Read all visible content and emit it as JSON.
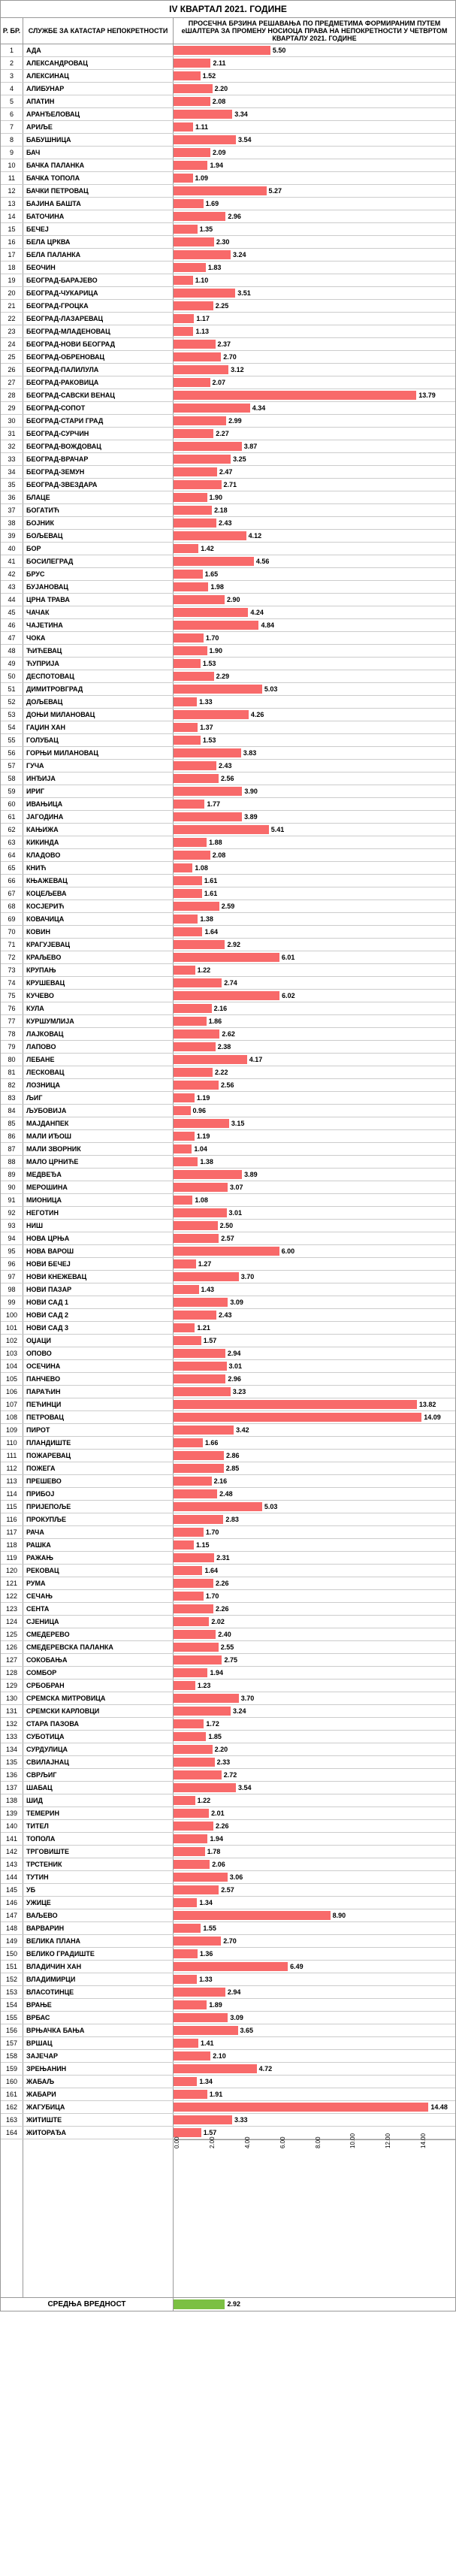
{
  "title": "IV КВАРТАЛ 2021. ГОДИНЕ",
  "header_num": "Р. БР.",
  "header_name": "СЛУЖБЕ ЗА КАТАСТАР НЕПОКРЕТНОСТИ",
  "header_chart": "ПРОСЕЧНА БРЗИНА РЕШАВАЊА ПО ПРЕДМЕТИМА ФОРМИРАНИМ ПУТЕМ еШАЛТЕРА ЗА ПРОМЕНУ НОСИОЦА ПРАВА НА НЕПОКРЕТНОСТИ У ЧЕТВРТОМ КВАРТАЛУ 2021. ГОДИНЕ",
  "chart": {
    "max": 16,
    "bar_color": "#f86a6a",
    "avg_color": "#7bc043",
    "ticks": [
      0,
      2,
      4,
      6,
      8,
      10,
      12,
      14,
      16
    ]
  },
  "avg_label": "СРЕДЊА ВРЕДНОСТ",
  "avg_value": 2.92,
  "rows": [
    {
      "n": 1,
      "name": "АДА",
      "v": 5.5
    },
    {
      "n": 2,
      "name": "АЛЕКСАНДРОВАЦ",
      "v": 2.11
    },
    {
      "n": 3,
      "name": "АЛЕКСИНАЦ",
      "v": 1.52
    },
    {
      "n": 4,
      "name": "АЛИБУНАР",
      "v": 2.2
    },
    {
      "n": 5,
      "name": "АПАТИН",
      "v": 2.08
    },
    {
      "n": 6,
      "name": "АРАНЂЕЛОВАЦ",
      "v": 3.34
    },
    {
      "n": 7,
      "name": "АРИЉЕ",
      "v": 1.11
    },
    {
      "n": 8,
      "name": "БАБУШНИЦА",
      "v": 3.54
    },
    {
      "n": 9,
      "name": "БАЧ",
      "v": 2.09
    },
    {
      "n": 10,
      "name": "БАЧКА ПАЛАНКА",
      "v": 1.94
    },
    {
      "n": 11,
      "name": "БАЧКА ТОПОЛА",
      "v": 1.09
    },
    {
      "n": 12,
      "name": "БАЧКИ ПЕТРОВАЦ",
      "v": 5.27
    },
    {
      "n": 13,
      "name": "БАЈИНА БАШТА",
      "v": 1.69
    },
    {
      "n": 14,
      "name": "БАТОЧИНА",
      "v": 2.96
    },
    {
      "n": 15,
      "name": "БЕЧЕЈ",
      "v": 1.35
    },
    {
      "n": 16,
      "name": "БЕЛА ЦРКВА",
      "v": 2.3
    },
    {
      "n": 17,
      "name": "БЕЛА ПАЛАНКА",
      "v": 3.24
    },
    {
      "n": 18,
      "name": "БЕОЧИН",
      "v": 1.83
    },
    {
      "n": 19,
      "name": "БЕОГРАД-БАРАЈЕВО",
      "v": 1.1
    },
    {
      "n": 20,
      "name": "БЕОГРАД-ЧУКАРИЦА",
      "v": 3.51
    },
    {
      "n": 21,
      "name": "БЕОГРАД-ГРОЦКА",
      "v": 2.25
    },
    {
      "n": 22,
      "name": "БЕОГРАД-ЛАЗАРЕВАЦ",
      "v": 1.17
    },
    {
      "n": 23,
      "name": "БЕОГРАД-МЛАДЕНОВАЦ",
      "v": 1.13
    },
    {
      "n": 24,
      "name": "БЕОГРАД-НОВИ БЕОГРАД",
      "v": 2.37
    },
    {
      "n": 25,
      "name": "БЕОГРАД-ОБРЕНОВАЦ",
      "v": 2.7
    },
    {
      "n": 26,
      "name": "БЕОГРАД-ПАЛИЛУЛА",
      "v": 3.12
    },
    {
      "n": 27,
      "name": "БЕОГРАД-РАКОВИЦА",
      "v": 2.07
    },
    {
      "n": 28,
      "name": "БЕОГРАД-САВСКИ ВЕНАЦ",
      "v": 13.79
    },
    {
      "n": 29,
      "name": "БЕОГРАД-СОПОТ",
      "v": 4.34
    },
    {
      "n": 30,
      "name": "БЕОГРАД-СТАРИ ГРАД",
      "v": 2.99
    },
    {
      "n": 31,
      "name": "БЕОГРАД-СУРЧИН",
      "v": 2.27
    },
    {
      "n": 32,
      "name": "БЕОГРАД-ВОЖДОВАЦ",
      "v": 3.87
    },
    {
      "n": 33,
      "name": "БЕОГРАД-ВРАЧАР",
      "v": 3.25
    },
    {
      "n": 34,
      "name": "БЕОГРАД-ЗЕМУН",
      "v": 2.47
    },
    {
      "n": 35,
      "name": "БЕОГРАД-ЗВЕЗДАРА",
      "v": 2.71
    },
    {
      "n": 36,
      "name": "БЛАЦЕ",
      "v": 1.9
    },
    {
      "n": 37,
      "name": "БОГАТИЋ",
      "v": 2.18
    },
    {
      "n": 38,
      "name": "БОЈНИК",
      "v": 2.43
    },
    {
      "n": 39,
      "name": "БОЉЕВАЦ",
      "v": 4.12
    },
    {
      "n": 40,
      "name": "БОР",
      "v": 1.42
    },
    {
      "n": 41,
      "name": "БОСИЛЕГРАД",
      "v": 4.56
    },
    {
      "n": 42,
      "name": "БРУС",
      "v": 1.65
    },
    {
      "n": 43,
      "name": "БУЈАНОВАЦ",
      "v": 1.98
    },
    {
      "n": 44,
      "name": "ЦРНА ТРАВА",
      "v": 2.9
    },
    {
      "n": 45,
      "name": "ЧАЧАК",
      "v": 4.24
    },
    {
      "n": 46,
      "name": "ЧАЈЕТИНА",
      "v": 4.84
    },
    {
      "n": 47,
      "name": "ЧОКА",
      "v": 1.7
    },
    {
      "n": 48,
      "name": "ЋИЋЕВАЦ",
      "v": 1.9
    },
    {
      "n": 49,
      "name": "ЋУПРИЈА",
      "v": 1.53
    },
    {
      "n": 50,
      "name": "ДЕСПОТОВАЦ",
      "v": 2.29
    },
    {
      "n": 51,
      "name": "ДИМИТРОВГРАД",
      "v": 5.03
    },
    {
      "n": 52,
      "name": "ДОЉЕВАЦ",
      "v": 1.33
    },
    {
      "n": 53,
      "name": "ДОЊИ МИЛАНОВАЦ",
      "v": 4.26
    },
    {
      "n": 54,
      "name": "ГАЏИН ХАН",
      "v": 1.37
    },
    {
      "n": 55,
      "name": "ГОЛУБАЦ",
      "v": 1.53
    },
    {
      "n": 56,
      "name": "ГОРЊИ МИЛАНОВАЦ",
      "v": 3.83
    },
    {
      "n": 57,
      "name": "ГУЧА",
      "v": 2.43
    },
    {
      "n": 58,
      "name": "ИНЂИЈА",
      "v": 2.56
    },
    {
      "n": 59,
      "name": "ИРИГ",
      "v": 3.9
    },
    {
      "n": 60,
      "name": "ИВАЊИЦА",
      "v": 1.77
    },
    {
      "n": 61,
      "name": "ЈАГОДИНА",
      "v": 3.89
    },
    {
      "n": 62,
      "name": "КАЊИЖА",
      "v": 5.41
    },
    {
      "n": 63,
      "name": "КИКИНДА",
      "v": 1.88
    },
    {
      "n": 64,
      "name": "КЛАДОВО",
      "v": 2.08
    },
    {
      "n": 65,
      "name": "КНИЋ",
      "v": 1.08
    },
    {
      "n": 66,
      "name": "КЊАЖЕВАЦ",
      "v": 1.61
    },
    {
      "n": 67,
      "name": "КОЦЕЉЕВА",
      "v": 1.61
    },
    {
      "n": 68,
      "name": "КОСЈЕРИЋ",
      "v": 2.59
    },
    {
      "n": 69,
      "name": "КОВАЧИЦА",
      "v": 1.38
    },
    {
      "n": 70,
      "name": "КОВИН",
      "v": 1.64
    },
    {
      "n": 71,
      "name": "КРАГУЈЕВАЦ",
      "v": 2.92
    },
    {
      "n": 72,
      "name": "КРАЉЕВО",
      "v": 6.01
    },
    {
      "n": 73,
      "name": "КРУПАЊ",
      "v": 1.22
    },
    {
      "n": 74,
      "name": "КРУШЕВАЦ",
      "v": 2.74
    },
    {
      "n": 75,
      "name": "КУЧЕВО",
      "v": 6.02
    },
    {
      "n": 76,
      "name": "КУЛА",
      "v": 2.16
    },
    {
      "n": 77,
      "name": "КУРШУМЛИЈА",
      "v": 1.86
    },
    {
      "n": 78,
      "name": "ЛАЈКОВАЦ",
      "v": 2.62
    },
    {
      "n": 79,
      "name": "ЛАПОВО",
      "v": 2.38
    },
    {
      "n": 80,
      "name": "ЛЕБАНЕ",
      "v": 4.17
    },
    {
      "n": 81,
      "name": "ЛЕСКОВАЦ",
      "v": 2.22
    },
    {
      "n": 82,
      "name": "ЛОЗНИЦА",
      "v": 2.56
    },
    {
      "n": 83,
      "name": "ЉИГ",
      "v": 1.19
    },
    {
      "n": 84,
      "name": "ЉУБОВИЈА",
      "v": 0.96
    },
    {
      "n": 85,
      "name": "МАЈДАНПЕК",
      "v": 3.15
    },
    {
      "n": 86,
      "name": "МАЛИ ИЂОШ",
      "v": 1.19
    },
    {
      "n": 87,
      "name": "МАЛИ ЗВОРНИК",
      "v": 1.04
    },
    {
      "n": 88,
      "name": "МАЛО ЦРНИЋЕ",
      "v": 1.38
    },
    {
      "n": 89,
      "name": "МЕДВЕЂА",
      "v": 3.89
    },
    {
      "n": 90,
      "name": "МЕРОШИНА",
      "v": 3.07
    },
    {
      "n": 91,
      "name": "МИОНИЦА",
      "v": 1.08
    },
    {
      "n": 92,
      "name": "НЕГОТИН",
      "v": 3.01
    },
    {
      "n": 93,
      "name": "НИШ",
      "v": 2.5
    },
    {
      "n": 94,
      "name": "НОВА ЦРЊА",
      "v": 2.57
    },
    {
      "n": 95,
      "name": "НОВА ВАРОШ",
      "v": 6.0
    },
    {
      "n": 96,
      "name": "НОВИ БЕЧЕЈ",
      "v": 1.27
    },
    {
      "n": 97,
      "name": "НОВИ КНЕЖЕВАЦ",
      "v": 3.7
    },
    {
      "n": 98,
      "name": "НОВИ ПАЗАР",
      "v": 1.43
    },
    {
      "n": 99,
      "name": "НОВИ САД 1",
      "v": 3.09
    },
    {
      "n": 100,
      "name": "НОВИ САД 2",
      "v": 2.43
    },
    {
      "n": 101,
      "name": "НОВИ САД 3",
      "v": 1.21
    },
    {
      "n": 102,
      "name": "ОЏАЦИ",
      "v": 1.57
    },
    {
      "n": 103,
      "name": "ОПОВО",
      "v": 2.94
    },
    {
      "n": 104,
      "name": "ОСЕЧИНА",
      "v": 3.01
    },
    {
      "n": 105,
      "name": "ПАНЧЕВО",
      "v": 2.96
    },
    {
      "n": 106,
      "name": "ПАРАЋИН",
      "v": 3.23
    },
    {
      "n": 107,
      "name": "ПЕЋИНЦИ",
      "v": 13.82
    },
    {
      "n": 108,
      "name": "ПЕТРОВАЦ",
      "v": 14.09
    },
    {
      "n": 109,
      "name": "ПИРОТ",
      "v": 3.42
    },
    {
      "n": 110,
      "name": "ПЛАНДИШТЕ",
      "v": 1.66
    },
    {
      "n": 111,
      "name": "ПОЖАРЕВАЦ",
      "v": 2.86
    },
    {
      "n": 112,
      "name": "ПОЖЕГА",
      "v": 2.85
    },
    {
      "n": 113,
      "name": "ПРЕШЕВО",
      "v": 2.16
    },
    {
      "n": 114,
      "name": "ПРИБОЈ",
      "v": 2.48
    },
    {
      "n": 115,
      "name": "ПРИЈЕПОЉЕ",
      "v": 5.03
    },
    {
      "n": 116,
      "name": "ПРОКУПЉЕ",
      "v": 2.83
    },
    {
      "n": 117,
      "name": "РАЧА",
      "v": 1.7
    },
    {
      "n": 118,
      "name": "РАШКА",
      "v": 1.15
    },
    {
      "n": 119,
      "name": "РАЖАЊ",
      "v": 2.31
    },
    {
      "n": 120,
      "name": "РЕКОВАЦ",
      "v": 1.64
    },
    {
      "n": 121,
      "name": "РУМА",
      "v": 2.26
    },
    {
      "n": 122,
      "name": "СЕЧАЊ",
      "v": 1.7
    },
    {
      "n": 123,
      "name": "СЕНТА",
      "v": 2.26
    },
    {
      "n": 124,
      "name": "СЈЕНИЦА",
      "v": 2.02
    },
    {
      "n": 125,
      "name": "СМЕДЕРЕВО",
      "v": 2.4
    },
    {
      "n": 126,
      "name": "СМЕДЕРЕВСКА ПАЛАНКА",
      "v": 2.55
    },
    {
      "n": 127,
      "name": "СОКОБАЊА",
      "v": 2.75
    },
    {
      "n": 128,
      "name": "СОМБОР",
      "v": 1.94
    },
    {
      "n": 129,
      "name": "СРБОБРАН",
      "v": 1.23
    },
    {
      "n": 130,
      "name": "СРЕМСКА МИТРОВИЦА",
      "v": 3.7
    },
    {
      "n": 131,
      "name": "СРЕМСКИ КАРЛОВЦИ",
      "v": 3.24
    },
    {
      "n": 132,
      "name": "СТАРА ПАЗОВА",
      "v": 1.72
    },
    {
      "n": 133,
      "name": "СУБОТИЦА",
      "v": 1.85
    },
    {
      "n": 134,
      "name": "СУРДУЛИЦА",
      "v": 2.2
    },
    {
      "n": 135,
      "name": "СВИЛАЈНАЦ",
      "v": 2.33
    },
    {
      "n": 136,
      "name": "СВРЉИГ",
      "v": 2.72
    },
    {
      "n": 137,
      "name": "ШАБАЦ",
      "v": 3.54
    },
    {
      "n": 138,
      "name": "ШИД",
      "v": 1.22
    },
    {
      "n": 139,
      "name": "ТЕМЕРИН",
      "v": 2.01
    },
    {
      "n": 140,
      "name": "ТИТЕЛ",
      "v": 2.26
    },
    {
      "n": 141,
      "name": "ТОПОЛА",
      "v": 1.94
    },
    {
      "n": 142,
      "name": "ТРГОВИШТЕ",
      "v": 1.78
    },
    {
      "n": 143,
      "name": "ТРСТЕНИК",
      "v": 2.06
    },
    {
      "n": 144,
      "name": "ТУТИН",
      "v": 3.06
    },
    {
      "n": 145,
      "name": "УБ",
      "v": 2.57
    },
    {
      "n": 146,
      "name": "УЖИЦЕ",
      "v": 1.34
    },
    {
      "n": 147,
      "name": "ВАЉЕВО",
      "v": 8.9
    },
    {
      "n": 148,
      "name": "ВАРВАРИН",
      "v": 1.55
    },
    {
      "n": 149,
      "name": "ВЕЛИКА ПЛАНА",
      "v": 2.7
    },
    {
      "n": 150,
      "name": "ВЕЛИКО ГРАДИШТЕ",
      "v": 1.36
    },
    {
      "n": 151,
      "name": "ВЛАДИЧИН ХАН",
      "v": 6.49
    },
    {
      "n": 152,
      "name": "ВЛАДИМИРЦИ",
      "v": 1.33
    },
    {
      "n": 153,
      "name": "ВЛАСОТИНЦЕ",
      "v": 2.94
    },
    {
      "n": 154,
      "name": "ВРАЊЕ",
      "v": 1.89
    },
    {
      "n": 155,
      "name": "ВРБАС",
      "v": 3.09
    },
    {
      "n": 156,
      "name": "ВРЊАЧКА БАЊА",
      "v": 3.65
    },
    {
      "n": 157,
      "name": "ВРШАЦ",
      "v": 1.41
    },
    {
      "n": 158,
      "name": "ЗАЈЕЧАР",
      "v": 2.1
    },
    {
      "n": 159,
      "name": "ЗРЕЊАНИН",
      "v": 4.72
    },
    {
      "n": 160,
      "name": "ЖАБАЉ",
      "v": 1.34
    },
    {
      "n": 161,
      "name": "ЖАБАРИ",
      "v": 1.91
    },
    {
      "n": 162,
      "name": "ЖАГУБИЦА",
      "v": 14.48
    },
    {
      "n": 163,
      "name": "ЖИТИШТЕ",
      "v": 3.33
    },
    {
      "n": 164,
      "name": "ЖИТОРАЂА",
      "v": 1.57
    }
  ]
}
